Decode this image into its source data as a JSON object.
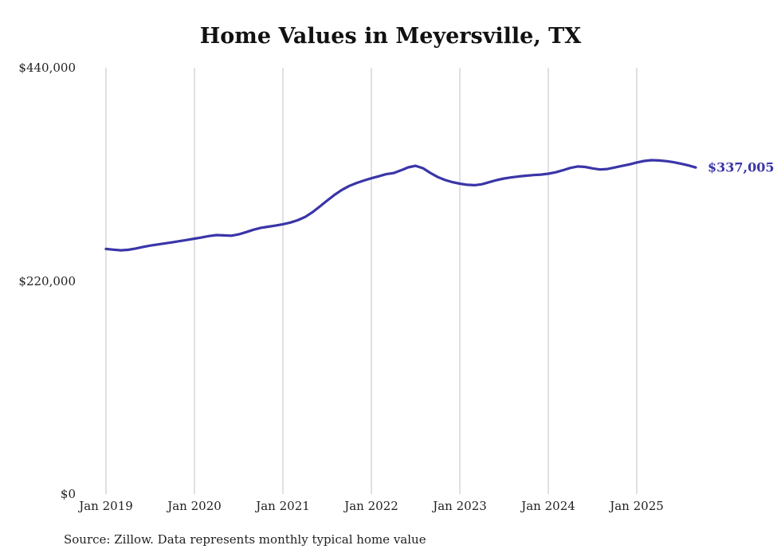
{
  "chart_data": {
    "type": "line",
    "title": "Home Values in Meyersville, TX",
    "series_name": "Monthly typical home value",
    "ylim": [
      0,
      440000
    ],
    "grid": "vertical-only",
    "line_color": "#3a35a8",
    "grid_color": "#cccccc",
    "end_label": "$337,005",
    "end_value": 337005,
    "source_note": "Source: Zillow. Data represents monthly typical home value",
    "y_ticks": [
      {
        "value": 0,
        "label": "$0"
      },
      {
        "value": 220000,
        "label": "$220,000"
      },
      {
        "value": 440000,
        "label": "$440,000"
      }
    ],
    "x_ticks": [
      "Jan 2019",
      "Jan 2020",
      "Jan 2021",
      "Jan 2022",
      "Jan 2023",
      "Jan 2024",
      "Jan 2025"
    ],
    "x": [
      "Jan 2019",
      "Feb 2019",
      "Mar 2019",
      "Apr 2019",
      "May 2019",
      "Jun 2019",
      "Jul 2019",
      "Aug 2019",
      "Sep 2019",
      "Oct 2019",
      "Nov 2019",
      "Dec 2019",
      "Jan 2020",
      "Feb 2020",
      "Mar 2020",
      "Apr 2020",
      "May 2020",
      "Jun 2020",
      "Jul 2020",
      "Aug 2020",
      "Sep 2020",
      "Oct 2020",
      "Nov 2020",
      "Dec 2020",
      "Jan 2021",
      "Feb 2021",
      "Mar 2021",
      "Apr 2021",
      "May 2021",
      "Jun 2021",
      "Jul 2021",
      "Aug 2021",
      "Sep 2021",
      "Oct 2021",
      "Nov 2021",
      "Dec 2021",
      "Jan 2022",
      "Feb 2022",
      "Mar 2022",
      "Apr 2022",
      "May 2022",
      "Jun 2022",
      "Jul 2022",
      "Aug 2022",
      "Sep 2022",
      "Oct 2022",
      "Nov 2022",
      "Dec 2022",
      "Jan 2023",
      "Feb 2023",
      "Mar 2023",
      "Apr 2023",
      "May 2023",
      "Jun 2023",
      "Jul 2023",
      "Aug 2023",
      "Sep 2023",
      "Oct 2023",
      "Nov 2023",
      "Dec 2023",
      "Jan 2024",
      "Feb 2024",
      "Mar 2024",
      "Apr 2024",
      "May 2024",
      "Jun 2024",
      "Jul 2024",
      "Aug 2024",
      "Sep 2024",
      "Oct 2024",
      "Nov 2024",
      "Dec 2024",
      "Jan 2025",
      "Feb 2025",
      "Mar 2025",
      "Apr 2025",
      "May 2025",
      "Jun 2025",
      "Jul 2025",
      "Aug 2025",
      "Sep 2025"
    ],
    "values": [
      253000,
      252200,
      251600,
      252100,
      253400,
      255000,
      256400,
      257600,
      258700,
      259800,
      261000,
      262300,
      263600,
      264900,
      266300,
      267300,
      267000,
      266600,
      268000,
      270300,
      272800,
      274800,
      275900,
      277100,
      278500,
      280200,
      282600,
      286000,
      290800,
      296800,
      302900,
      308800,
      313900,
      318000,
      321100,
      323600,
      325900,
      328000,
      330100,
      331300,
      334100,
      337200,
      338800,
      336300,
      331400,
      327200,
      324100,
      321900,
      320300,
      319200,
      318800,
      319800,
      321900,
      324000,
      325700,
      326800,
      327800,
      328600,
      329200,
      329700,
      330600,
      332100,
      334200,
      336600,
      338100,
      337600,
      336100,
      335000,
      335500,
      337000,
      338700,
      340200,
      342200,
      343800,
      344600,
      344300,
      343600,
      342500,
      341000,
      339200,
      337005
    ]
  }
}
